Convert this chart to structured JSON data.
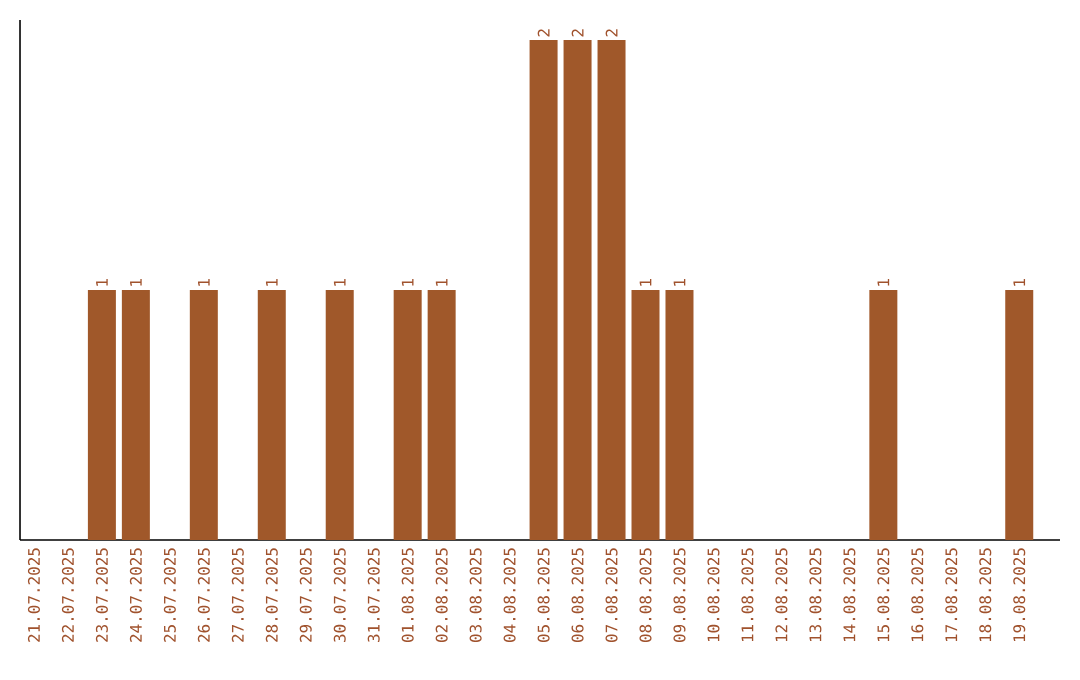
{
  "chart_data": {
    "type": "bar",
    "categories": [
      "21.07.2025",
      "22.07.2025",
      "23.07.2025",
      "24.07.2025",
      "25.07.2025",
      "26.07.2025",
      "27.07.2025",
      "28.07.2025",
      "29.07.2025",
      "30.07.2025",
      "31.07.2025",
      "01.08.2025",
      "02.08.2025",
      "03.08.2025",
      "04.08.2025",
      "05.08.2025",
      "06.08.2025",
      "07.08.2025",
      "08.08.2025",
      "09.08.2025",
      "10.08.2025",
      "11.08.2025",
      "12.08.2025",
      "13.08.2025",
      "14.08.2025",
      "15.08.2025",
      "16.08.2025",
      "17.08.2025",
      "18.08.2025",
      "19.08.2025"
    ],
    "values": [
      0,
      0,
      1,
      1,
      0,
      1,
      0,
      1,
      0,
      1,
      0,
      1,
      1,
      0,
      0,
      2,
      2,
      2,
      1,
      1,
      0,
      0,
      0,
      0,
      0,
      1,
      0,
      0,
      0,
      1
    ],
    "value_labels": [
      null,
      null,
      "1",
      "1",
      null,
      "1",
      null,
      "1",
      null,
      "1",
      null,
      "1",
      "1",
      null,
      null,
      "2",
      "2",
      "2",
      "1",
      "1",
      null,
      null,
      null,
      null,
      null,
      "1",
      null,
      null,
      null,
      "1"
    ],
    "color": "#a0582a"
  }
}
